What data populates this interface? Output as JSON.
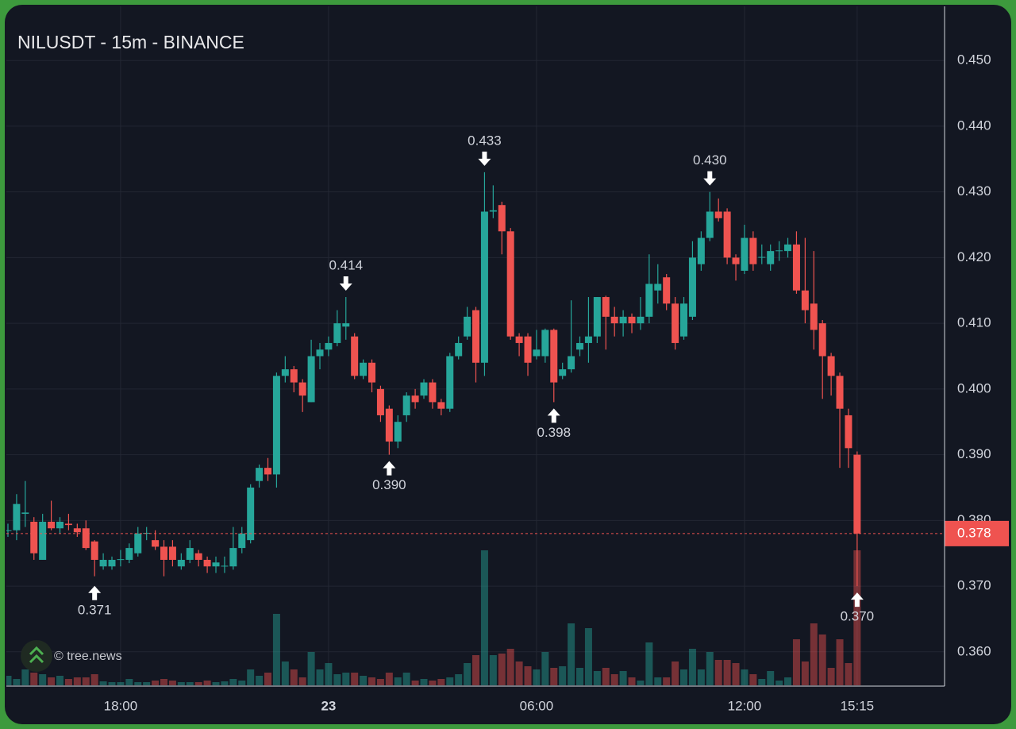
{
  "chart_data": {
    "type": "candlestick",
    "title": "NILUSDT - 15m - BINANCE",
    "watermark": "© tree.news",
    "x": [
      "14:45",
      "15:00",
      "15:15",
      "15:30",
      "15:45",
      "16:00",
      "16:15",
      "16:30",
      "16:45",
      "17:00",
      "17:15",
      "17:30",
      "17:45",
      "18:00",
      "18:15",
      "18:30",
      "18:45",
      "19:00",
      "19:15",
      "19:30",
      "19:45",
      "20:00",
      "20:15",
      "20:30",
      "20:45",
      "21:00",
      "21:15",
      "21:30",
      "21:45",
      "22:00",
      "22:15",
      "22:30",
      "22:45",
      "23:00",
      "23:15",
      "23:30",
      "23:45",
      "00:00",
      "00:15",
      "00:30",
      "00:45",
      "01:00",
      "01:15",
      "01:30",
      "01:45",
      "02:00",
      "02:15",
      "02:30",
      "02:45",
      "03:00",
      "03:15",
      "03:30",
      "03:45",
      "04:00",
      "04:15",
      "04:30",
      "04:45",
      "05:00",
      "05:15",
      "05:30",
      "05:45",
      "06:00",
      "06:15",
      "06:30",
      "06:45",
      "07:00",
      "07:15",
      "07:30",
      "07:45",
      "08:00",
      "08:15",
      "08:30",
      "08:45",
      "09:00",
      "09:15",
      "09:30",
      "09:45",
      "10:00",
      "10:15",
      "10:30",
      "10:45",
      "11:00",
      "11:15",
      "11:30",
      "11:45",
      "12:00",
      "12:15",
      "12:30",
      "12:45",
      "13:00",
      "13:15",
      "13:30",
      "13:45",
      "14:00",
      "14:15",
      "14:30",
      "14:45",
      "15:00",
      "15:15"
    ],
    "open": [
      0.3785,
      0.3785,
      0.381,
      0.3798,
      0.374,
      0.3798,
      0.3788,
      0.3795,
      0.3788,
      0.3788,
      0.3768,
      0.373,
      0.373,
      0.374,
      0.374,
      0.375,
      0.378,
      0.377,
      0.376,
      0.376,
      0.373,
      0.374,
      0.375,
      0.374,
      0.373,
      0.373,
      0.373,
      0.3758,
      0.377,
      0.386,
      0.388,
      0.387,
      0.402,
      0.403,
      0.401,
      0.398,
      0.405,
      0.406,
      0.407,
      0.4095,
      0.408,
      0.402,
      0.404,
      0.4,
      0.397,
      0.392,
      0.396,
      0.399,
      0.399,
      0.401,
      0.398,
      0.397,
      0.405,
      0.408,
      0.412,
      0.404,
      0.427,
      0.428,
      0.424,
      0.408,
      0.408,
      0.405,
      0.405,
      0.409,
      0.402,
      0.403,
      0.406,
      0.407,
      0.408,
      0.414,
      0.411,
      0.41,
      0.411,
      0.41,
      0.411,
      0.415,
      0.417,
      0.413,
      0.408,
      0.411,
      0.419,
      0.423,
      0.427,
      0.427,
      0.42,
      0.418,
      0.423,
      0.42,
      0.419,
      0.421,
      0.421,
      0.422,
      0.415,
      0.413,
      0.41,
      0.405,
      0.402,
      0.396,
      0.39
    ],
    "high": [
      0.3795,
      0.384,
      0.386,
      0.3805,
      0.381,
      0.383,
      0.3805,
      0.381,
      0.3795,
      0.38,
      0.377,
      0.375,
      0.3745,
      0.3755,
      0.3765,
      0.379,
      0.379,
      0.3785,
      0.377,
      0.377,
      0.375,
      0.377,
      0.3755,
      0.3745,
      0.3745,
      0.3745,
      0.379,
      0.379,
      0.3855,
      0.3885,
      0.3895,
      0.4025,
      0.405,
      0.4035,
      0.4015,
      0.4075,
      0.407,
      0.408,
      0.412,
      0.414,
      0.4085,
      0.4045,
      0.4045,
      0.4005,
      0.3975,
      0.396,
      0.3995,
      0.4,
      0.4015,
      0.4015,
      0.3985,
      0.4055,
      0.408,
      0.4125,
      0.4125,
      0.433,
      0.431,
      0.4285,
      0.4245,
      0.4085,
      0.4085,
      0.409,
      0.4092,
      0.4092,
      0.404,
      0.4135,
      0.408,
      0.414,
      0.414,
      0.4142,
      0.4125,
      0.412,
      0.4115,
      0.414,
      0.4205,
      0.419,
      0.4175,
      0.414,
      0.414,
      0.4225,
      0.424,
      0.43,
      0.429,
      0.4275,
      0.4205,
      0.425,
      0.424,
      0.422,
      0.422,
      0.4225,
      0.423,
      0.424,
      0.423,
      0.421,
      0.4105,
      0.4055,
      0.4025,
      0.397,
      0.3905
    ],
    "low": [
      0.3775,
      0.377,
      0.379,
      0.374,
      0.374,
      0.3785,
      0.378,
      0.3785,
      0.3775,
      0.3755,
      0.3715,
      0.3725,
      0.3725,
      0.373,
      0.3735,
      0.3745,
      0.377,
      0.3755,
      0.3715,
      0.373,
      0.3725,
      0.3735,
      0.373,
      0.372,
      0.372,
      0.372,
      0.3725,
      0.375,
      0.3765,
      0.385,
      0.386,
      0.385,
      0.401,
      0.3995,
      0.3965,
      0.398,
      0.403,
      0.405,
      0.4065,
      0.4075,
      0.4015,
      0.4015,
      0.3995,
      0.395,
      0.39,
      0.391,
      0.395,
      0.397,
      0.3985,
      0.397,
      0.396,
      0.3965,
      0.4045,
      0.4075,
      0.401,
      0.402,
      0.426,
      0.4205,
      0.4075,
      0.405,
      0.402,
      0.4045,
      0.404,
      0.398,
      0.4015,
      0.4025,
      0.405,
      0.404,
      0.407,
      0.406,
      0.408,
      0.408,
      0.4085,
      0.409,
      0.41,
      0.413,
      0.412,
      0.406,
      0.4075,
      0.4105,
      0.418,
      0.4225,
      0.4255,
      0.419,
      0.4165,
      0.4175,
      0.418,
      0.419,
      0.418,
      0.4195,
      0.42,
      0.4145,
      0.41,
      0.406,
      0.3985,
      0.399,
      0.388,
      0.388,
      0.37
    ],
    "close": [
      0.3785,
      0.3825,
      0.3812,
      0.375,
      0.3798,
      0.3788,
      0.3798,
      0.3793,
      0.3782,
      0.3758,
      0.374,
      0.374,
      0.374,
      0.3741,
      0.3758,
      0.378,
      0.3781,
      0.376,
      0.374,
      0.374,
      0.374,
      0.3758,
      0.374,
      0.373,
      0.3736,
      0.3731,
      0.3758,
      0.378,
      0.385,
      0.388,
      0.387,
      0.402,
      0.403,
      0.401,
      0.399,
      0.405,
      0.406,
      0.407,
      0.41,
      0.41,
      0.402,
      0.404,
      0.401,
      0.396,
      0.392,
      0.395,
      0.399,
      0.398,
      0.401,
      0.398,
      0.397,
      0.405,
      0.407,
      0.411,
      0.404,
      0.427,
      0.4272,
      0.424,
      0.408,
      0.407,
      0.404,
      0.406,
      0.409,
      0.401,
      0.403,
      0.405,
      0.407,
      0.408,
      0.414,
      0.411,
      0.41,
      0.411,
      0.41,
      0.411,
      0.416,
      0.416,
      0.413,
      0.407,
      0.413,
      0.42,
      0.423,
      0.427,
      0.426,
      0.42,
      0.419,
      0.423,
      0.419,
      0.4201,
      0.421,
      0.4211,
      0.422,
      0.415,
      0.412,
      0.409,
      0.405,
      0.402,
      0.397,
      0.391,
      0.378
    ],
    "volume": [
      12,
      8,
      20,
      16,
      14,
      10,
      12,
      8,
      10,
      10,
      14,
      5,
      4,
      4,
      8,
      4,
      4,
      6,
      8,
      6,
      4,
      4,
      4,
      6,
      4,
      5,
      8,
      6,
      20,
      12,
      16,
      90,
      30,
      20,
      10,
      42,
      20,
      28,
      14,
      16,
      16,
      12,
      10,
      8,
      16,
      10,
      16,
      6,
      8,
      6,
      8,
      10,
      14,
      28,
      38,
      170,
      38,
      40,
      46,
      30,
      24,
      20,
      42,
      22,
      24,
      78,
      22,
      72,
      18,
      22,
      14,
      18,
      10,
      6,
      54,
      10,
      10,
      30,
      20,
      46,
      20,
      42,
      32,
      32,
      28,
      20,
      14,
      8,
      18,
      6,
      10,
      58,
      30,
      78,
      64,
      22,
      58,
      28,
      170
    ],
    "up_color": "#26a69a",
    "down_color": "#ef5350",
    "ylim": [
      0.3549,
      0.458
    ],
    "yticks": [
      {
        "value": 0.36,
        "label": "0.360"
      },
      {
        "value": 0.37,
        "label": "0.370"
      },
      {
        "value": 0.38,
        "label": "0.380"
      },
      {
        "value": 0.39,
        "label": "0.390"
      },
      {
        "value": 0.4,
        "label": "0.400"
      },
      {
        "value": 0.41,
        "label": "0.410"
      },
      {
        "value": 0.42,
        "label": "0.420"
      },
      {
        "value": 0.43,
        "label": "0.430"
      },
      {
        "value": 0.44,
        "label": "0.440"
      },
      {
        "value": 0.45,
        "label": "0.450"
      }
    ],
    "xticks": [
      "18:00",
      {
        "value": "00:00",
        "label": "23"
      },
      "06:00",
      "12:00",
      "15:15"
    ],
    "grid": true,
    "last_price": 0.378,
    "annotations": [
      {
        "x": "17:15",
        "value": 0.371,
        "label": "0.371",
        "kind": "low"
      },
      {
        "x": "00:30",
        "value": 0.414,
        "label": "0.414",
        "kind": "high"
      },
      {
        "x": "01:45",
        "value": 0.39,
        "label": "0.390",
        "kind": "low"
      },
      {
        "x": "04:30",
        "value": 0.433,
        "label": "0.433",
        "kind": "high"
      },
      {
        "x": "06:30",
        "value": 0.398,
        "label": "0.398",
        "kind": "low"
      },
      {
        "x": "11:00",
        "value": 0.43,
        "label": "0.430",
        "kind": "high"
      },
      {
        "x": "15:15",
        "value": 0.37,
        "label": "0.370",
        "kind": "low"
      }
    ]
  }
}
